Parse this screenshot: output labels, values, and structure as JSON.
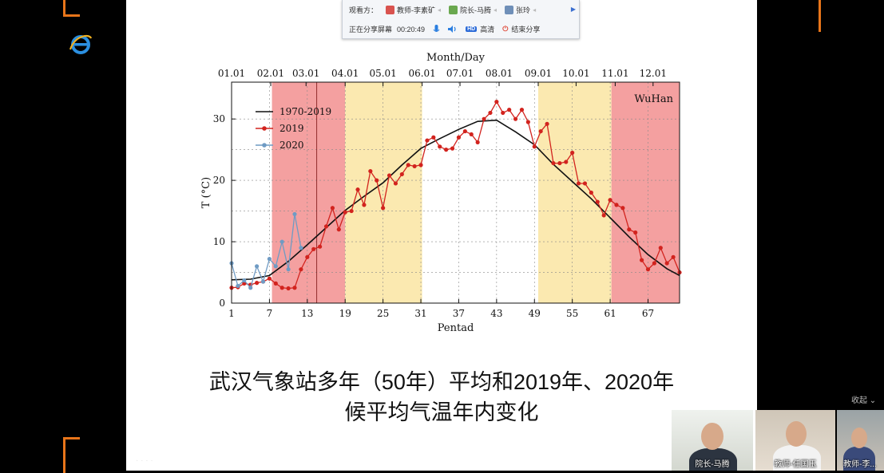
{
  "meeting": {
    "viewers_label": "观看方：",
    "viewers": [
      {
        "name": "教师-李素矿",
        "color": "#d9534f"
      },
      {
        "name": "院长-马腾",
        "color": "#6aa84f"
      },
      {
        "name": "张玲",
        "color": "#6f8fb8"
      }
    ],
    "sharing_label": "正在分享屏幕",
    "elapsed": "00:20:49",
    "hd_badge": "HD",
    "hd_label": "高清",
    "end_label": "结束分享",
    "collapse_label": "收起",
    "participants": [
      {
        "name": "院长-马腾"
      },
      {
        "name": "教师-任国玉"
      },
      {
        "name": "教师-李..."
      }
    ]
  },
  "slide": {
    "caption_line1": "武汉气象站多年（50年）平均和2019年、2020年",
    "caption_line2": "候平均气温年内变化"
  },
  "chart_data": {
    "type": "line",
    "station_label": "WuHan",
    "top_axis_title": "Month/Day",
    "top_axis_ticks": [
      {
        "label": "01.01",
        "pentad": 1
      },
      {
        "label": "02.01",
        "pentad": 7.2
      },
      {
        "label": "03.01",
        "pentad": 12.8
      },
      {
        "label": "04.01",
        "pentad": 19
      },
      {
        "label": "05.01",
        "pentad": 25
      },
      {
        "label": "06.01",
        "pentad": 31.2
      },
      {
        "label": "07.01",
        "pentad": 37.2
      },
      {
        "label": "08.01",
        "pentad": 43.4
      },
      {
        "label": "09.01",
        "pentad": 49.6
      },
      {
        "label": "10.01",
        "pentad": 55.6
      },
      {
        "label": "11.01",
        "pentad": 61.8
      },
      {
        "label": "12.01",
        "pentad": 67.8
      }
    ],
    "xlabel": "Pentad",
    "ylabel": "T (°C)",
    "xlim": [
      1,
      72
    ],
    "ylim": [
      0,
      36
    ],
    "xticks": [
      1,
      7,
      13,
      19,
      25,
      31,
      37,
      43,
      49,
      55,
      61,
      67
    ],
    "yticks": [
      0,
      10,
      20,
      30
    ],
    "grid": "dashed",
    "legend_position": "top-left",
    "vertical_marker_pentad": 14.5,
    "shaded_bands": [
      {
        "from": 7.4,
        "to": 19,
        "color": "#f4a0a0"
      },
      {
        "from": 19,
        "to": 31.2,
        "color": "#fbe9b0"
      },
      {
        "from": 49.6,
        "to": 61.2,
        "color": "#fbe9b0"
      },
      {
        "from": 61.2,
        "to": 72,
        "color": "#f4a0a0"
      }
    ],
    "series": [
      {
        "name": "1970-2019",
        "color": "#111111",
        "marker": "none",
        "x": [
          1,
          4,
          7,
          10,
          13,
          16,
          19,
          22,
          25,
          28,
          31,
          34,
          37,
          40,
          43,
          46,
          49,
          52,
          55,
          58,
          61,
          64,
          67,
          70,
          72
        ],
        "values": [
          3.8,
          3.9,
          4.5,
          6.8,
          9.5,
          12.3,
          15.1,
          17.4,
          19.6,
          22.5,
          25.2,
          26.8,
          28.3,
          29.6,
          29.8,
          27.9,
          25.8,
          22.6,
          19.8,
          17.0,
          13.9,
          10.8,
          7.9,
          5.6,
          4.5
        ]
      },
      {
        "name": "2019",
        "color": "#d2231e",
        "marker": "circle",
        "x": [
          1,
          2,
          3,
          4,
          5,
          6,
          7,
          8,
          9,
          10,
          11,
          12,
          13,
          14,
          15,
          16,
          17,
          18,
          19,
          20,
          21,
          22,
          23,
          24,
          25,
          26,
          27,
          28,
          29,
          30,
          31,
          32,
          33,
          34,
          35,
          36,
          37,
          38,
          39,
          40,
          41,
          42,
          43,
          44,
          45,
          46,
          47,
          48,
          49,
          50,
          51,
          52,
          53,
          54,
          55,
          56,
          57,
          58,
          59,
          60,
          61,
          62,
          63,
          64,
          65,
          66,
          67,
          68,
          69,
          70,
          71,
          72
        ],
        "values": [
          2.5,
          2.6,
          3.2,
          3.0,
          3.3,
          3.5,
          4.0,
          3.2,
          2.5,
          2.4,
          2.5,
          5.5,
          7.5,
          8.8,
          9.2,
          12.5,
          15.5,
          12.0,
          14.8,
          15.0,
          18.5,
          16.0,
          21.5,
          20.0,
          15.5,
          20.8,
          19.5,
          21.0,
          22.5,
          22.3,
          22.5,
          26.5,
          27.0,
          25.5,
          25.0,
          25.2,
          27.0,
          28.0,
          27.5,
          26.2,
          30.0,
          31.0,
          32.8,
          31.0,
          31.5,
          30.0,
          31.5,
          29.5,
          25.5,
          28.0,
          29.2,
          22.8,
          22.8,
          23.0,
          24.5,
          19.5,
          19.5,
          18.0,
          16.5,
          14.3,
          16.8,
          16.0,
          15.5,
          12.0,
          11.5,
          7.0,
          5.5,
          6.5,
          9.0,
          6.5,
          7.5,
          5.0
        ]
      },
      {
        "name": "2020",
        "color": "#6f9bc4",
        "marker": "circle",
        "x": [
          1,
          2,
          3,
          4,
          5,
          6,
          7,
          8,
          9,
          10,
          11,
          12
        ],
        "values": [
          6.5,
          2.8,
          3.7,
          2.5,
          6.0,
          3.5,
          7.2,
          6.0,
          10.0,
          5.5,
          14.5,
          9.0
        ]
      }
    ]
  }
}
